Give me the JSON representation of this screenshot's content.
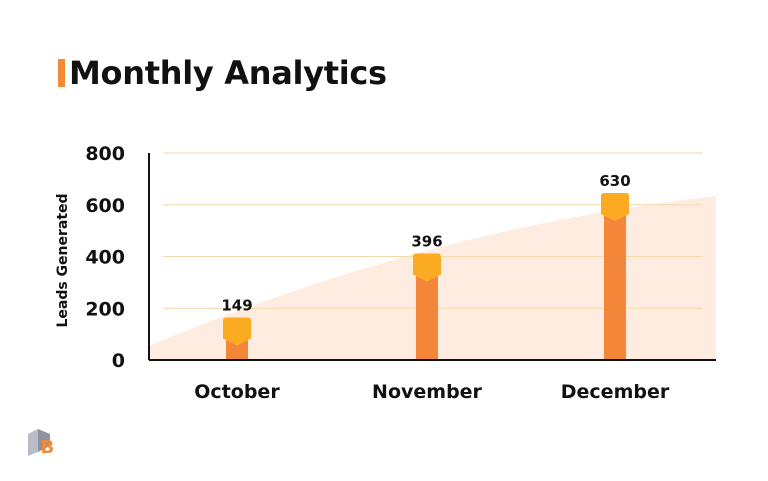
{
  "title": "Monthly Analytics",
  "colors": {
    "accent": "#f58a36",
    "bar": "#f4863a",
    "cap": "#fbab21",
    "area": "#fdecdf",
    "grid": "#f6d9a8",
    "axis": "#111111"
  },
  "logo": {
    "icon": "ub-logo-icon",
    "letter": "B"
  },
  "chart_data": {
    "type": "bar",
    "categories": [
      "October",
      "November",
      "December"
    ],
    "values": [
      149,
      396,
      630
    ],
    "data_labels": [
      "149",
      "396",
      "630"
    ],
    "ylabel": "Leads Generated",
    "xlabel": "",
    "ylim": [
      0,
      800
    ],
    "yticks": [
      0,
      200,
      400,
      600,
      800
    ],
    "ytick_labels": [
      "0",
      "200",
      "400",
      "600",
      "800"
    ],
    "grid": true,
    "background_area": true
  }
}
